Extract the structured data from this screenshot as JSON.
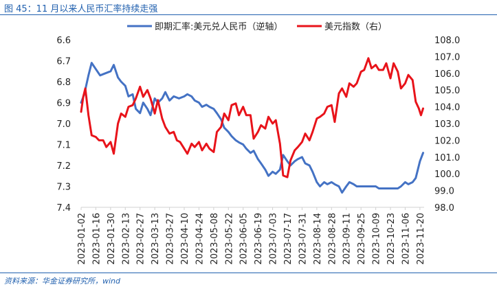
{
  "header": {
    "title": "图 45：11 月以来人民币汇率持续走强"
  },
  "footer": {
    "source": "资料来源：华金证券研究所，wind"
  },
  "chart_data": {
    "type": "line",
    "title": "",
    "x_dates": [
      "2023-01-02",
      "2023-01-16",
      "2023-01-30",
      "2023-02-13",
      "2023-02-27",
      "2023-03-13",
      "2023-03-27",
      "2023-04-10",
      "2023-04-24",
      "2023-05-08",
      "2023-05-22",
      "2023-06-05",
      "2023-06-19",
      "2023-07-03",
      "2023-07-17",
      "2023-07-31",
      "2023-08-14",
      "2023-08-28",
      "2023-09-11",
      "2023-09-25",
      "2023-10-09",
      "2023-10-23",
      "2023-11-06",
      "2023-11-20"
    ],
    "x_range": [
      "2023-01-02",
      "2023-11-24"
    ],
    "y_left": {
      "ticks": [
        "6.6",
        "6.7",
        "6.8",
        "6.9",
        "7.0",
        "7.1",
        "7.2",
        "7.3",
        "7.4"
      ],
      "range": [
        6.6,
        7.4
      ],
      "inverted": true
    },
    "y_right": {
      "ticks": [
        "108.0",
        "107.0",
        "106.0",
        "105.0",
        "104.0",
        "103.0",
        "102.0",
        "101.0",
        "100.0",
        "99.0",
        "98.0"
      ],
      "range": [
        98,
        108
      ]
    },
    "legend_position": "top",
    "series": [
      {
        "name": "即期汇率:美元兑人民币（逆轴）",
        "axis": "left",
        "color": "#4472c4",
        "points": [
          [
            "2023-01-02",
            6.9
          ],
          [
            "2023-01-05",
            6.86
          ],
          [
            "2023-01-09",
            6.77
          ],
          [
            "2023-01-12",
            6.71
          ],
          [
            "2023-01-16",
            6.74
          ],
          [
            "2023-01-20",
            6.77
          ],
          [
            "2023-01-25",
            6.76
          ],
          [
            "2023-01-30",
            6.75
          ],
          [
            "2023-02-02",
            6.72
          ],
          [
            "2023-02-06",
            6.78
          ],
          [
            "2023-02-09",
            6.8
          ],
          [
            "2023-02-13",
            6.82
          ],
          [
            "2023-02-16",
            6.87
          ],
          [
            "2023-02-20",
            6.86
          ],
          [
            "2023-02-23",
            6.93
          ],
          [
            "2023-02-27",
            6.95
          ],
          [
            "2023-03-02",
            6.9
          ],
          [
            "2023-03-06",
            6.93
          ],
          [
            "2023-03-09",
            6.96
          ],
          [
            "2023-03-13",
            6.88
          ],
          [
            "2023-03-16",
            6.9
          ],
          [
            "2023-03-20",
            6.88
          ],
          [
            "2023-03-23",
            6.85
          ],
          [
            "2023-03-27",
            6.89
          ],
          [
            "2023-03-31",
            6.87
          ],
          [
            "2023-04-05",
            6.88
          ],
          [
            "2023-04-10",
            6.87
          ],
          [
            "2023-04-13",
            6.86
          ],
          [
            "2023-04-17",
            6.87
          ],
          [
            "2023-04-20",
            6.89
          ],
          [
            "2023-04-24",
            6.9
          ],
          [
            "2023-04-27",
            6.92
          ],
          [
            "2023-05-01",
            6.91
          ],
          [
            "2023-05-04",
            6.92
          ],
          [
            "2023-05-08",
            6.93
          ],
          [
            "2023-05-11",
            6.95
          ],
          [
            "2023-05-15",
            6.98
          ],
          [
            "2023-05-18",
            7.02
          ],
          [
            "2023-05-22",
            7.04
          ],
          [
            "2023-05-25",
            7.06
          ],
          [
            "2023-05-29",
            7.08
          ],
          [
            "2023-06-01",
            7.09
          ],
          [
            "2023-06-05",
            7.1
          ],
          [
            "2023-06-08",
            7.12
          ],
          [
            "2023-06-12",
            7.14
          ],
          [
            "2023-06-15",
            7.13
          ],
          [
            "2023-06-19",
            7.17
          ],
          [
            "2023-06-22",
            7.19
          ],
          [
            "2023-06-26",
            7.22
          ],
          [
            "2023-06-29",
            7.25
          ],
          [
            "2023-07-03",
            7.23
          ],
          [
            "2023-07-06",
            7.24
          ],
          [
            "2023-07-10",
            7.22
          ],
          [
            "2023-07-13",
            7.15
          ],
          [
            "2023-07-17",
            7.18
          ],
          [
            "2023-07-20",
            7.2
          ],
          [
            "2023-07-24",
            7.18
          ],
          [
            "2023-07-27",
            7.17
          ],
          [
            "2023-07-31",
            7.16
          ],
          [
            "2023-08-03",
            7.19
          ],
          [
            "2023-08-07",
            7.2
          ],
          [
            "2023-08-10",
            7.23
          ],
          [
            "2023-08-14",
            7.28
          ],
          [
            "2023-08-17",
            7.3
          ],
          [
            "2023-08-21",
            7.28
          ],
          [
            "2023-08-24",
            7.29
          ],
          [
            "2023-08-28",
            7.28
          ],
          [
            "2023-08-31",
            7.29
          ],
          [
            "2023-09-04",
            7.3
          ],
          [
            "2023-09-07",
            7.33
          ],
          [
            "2023-09-11",
            7.3
          ],
          [
            "2023-09-14",
            7.28
          ],
          [
            "2023-09-18",
            7.29
          ],
          [
            "2023-09-21",
            7.3
          ],
          [
            "2023-09-25",
            7.3
          ],
          [
            "2023-09-28",
            7.3
          ],
          [
            "2023-10-02",
            7.3
          ],
          [
            "2023-10-09",
            7.3
          ],
          [
            "2023-10-12",
            7.31
          ],
          [
            "2023-10-16",
            7.31
          ],
          [
            "2023-10-19",
            7.31
          ],
          [
            "2023-10-23",
            7.31
          ],
          [
            "2023-10-26",
            7.31
          ],
          [
            "2023-10-30",
            7.31
          ],
          [
            "2023-11-02",
            7.3
          ],
          [
            "2023-11-06",
            7.28
          ],
          [
            "2023-11-09",
            7.29
          ],
          [
            "2023-11-13",
            7.28
          ],
          [
            "2023-11-16",
            7.26
          ],
          [
            "2023-11-20",
            7.18
          ],
          [
            "2023-11-23",
            7.14
          ]
        ]
      },
      {
        "name": "美元指数（右）",
        "axis": "right",
        "color": "#e8131a",
        "points": [
          [
            "2023-01-02",
            103.7
          ],
          [
            "2023-01-04",
            104.6
          ],
          [
            "2023-01-06",
            105.1
          ],
          [
            "2023-01-09",
            103.5
          ],
          [
            "2023-01-12",
            102.3
          ],
          [
            "2023-01-16",
            102.2
          ],
          [
            "2023-01-19",
            102.0
          ],
          [
            "2023-01-23",
            102.0
          ],
          [
            "2023-01-26",
            101.6
          ],
          [
            "2023-01-30",
            101.9
          ],
          [
            "2023-02-02",
            101.2
          ],
          [
            "2023-02-06",
            103.0
          ],
          [
            "2023-02-09",
            103.6
          ],
          [
            "2023-02-13",
            103.4
          ],
          [
            "2023-02-16",
            104.0
          ],
          [
            "2023-02-20",
            104.1
          ],
          [
            "2023-02-23",
            104.5
          ],
          [
            "2023-02-27",
            105.2
          ],
          [
            "2023-03-02",
            104.6
          ],
          [
            "2023-03-06",
            105.0
          ],
          [
            "2023-03-09",
            104.5
          ],
          [
            "2023-03-13",
            103.6
          ],
          [
            "2023-03-16",
            104.4
          ],
          [
            "2023-03-20",
            103.3
          ],
          [
            "2023-03-23",
            102.8
          ],
          [
            "2023-03-27",
            102.4
          ],
          [
            "2023-03-31",
            102.5
          ],
          [
            "2023-04-03",
            102.0
          ],
          [
            "2023-04-06",
            101.9
          ],
          [
            "2023-04-10",
            101.5
          ],
          [
            "2023-04-13",
            101.2
          ],
          [
            "2023-04-17",
            101.8
          ],
          [
            "2023-04-20",
            101.6
          ],
          [
            "2023-04-24",
            101.9
          ],
          [
            "2023-04-27",
            101.4
          ],
          [
            "2023-05-01",
            101.8
          ],
          [
            "2023-05-04",
            101.5
          ],
          [
            "2023-05-08",
            101.3
          ],
          [
            "2023-05-11",
            102.5
          ],
          [
            "2023-05-15",
            102.8
          ],
          [
            "2023-05-18",
            103.6
          ],
          [
            "2023-05-22",
            103.2
          ],
          [
            "2023-05-25",
            104.1
          ],
          [
            "2023-05-29",
            104.2
          ],
          [
            "2023-06-01",
            103.5
          ],
          [
            "2023-06-05",
            104.0
          ],
          [
            "2023-06-08",
            103.5
          ],
          [
            "2023-06-12",
            103.5
          ],
          [
            "2023-06-15",
            102.1
          ],
          [
            "2023-06-19",
            102.5
          ],
          [
            "2023-06-22",
            102.9
          ],
          [
            "2023-06-26",
            102.7
          ],
          [
            "2023-06-29",
            103.4
          ],
          [
            "2023-07-03",
            103.0
          ],
          [
            "2023-07-06",
            103.2
          ],
          [
            "2023-07-10",
            101.8
          ],
          [
            "2023-07-13",
            99.9
          ],
          [
            "2023-07-17",
            99.8
          ],
          [
            "2023-07-20",
            100.8
          ],
          [
            "2023-07-24",
            101.4
          ],
          [
            "2023-07-27",
            101.6
          ],
          [
            "2023-07-31",
            101.9
          ],
          [
            "2023-08-03",
            102.4
          ],
          [
            "2023-08-07",
            102.0
          ],
          [
            "2023-08-10",
            102.5
          ],
          [
            "2023-08-14",
            103.3
          ],
          [
            "2023-08-17",
            103.4
          ],
          [
            "2023-08-21",
            103.6
          ],
          [
            "2023-08-24",
            104.0
          ],
          [
            "2023-08-28",
            104.1
          ],
          [
            "2023-08-31",
            103.1
          ],
          [
            "2023-09-04",
            104.8
          ],
          [
            "2023-09-07",
            105.1
          ],
          [
            "2023-09-11",
            104.6
          ],
          [
            "2023-09-14",
            105.4
          ],
          [
            "2023-09-18",
            105.2
          ],
          [
            "2023-09-21",
            105.4
          ],
          [
            "2023-09-25",
            106.1
          ],
          [
            "2023-09-28",
            106.2
          ],
          [
            "2023-10-02",
            106.9
          ],
          [
            "2023-10-05",
            106.3
          ],
          [
            "2023-10-09",
            106.5
          ],
          [
            "2023-10-12",
            106.2
          ],
          [
            "2023-10-16",
            106.2
          ],
          [
            "2023-10-19",
            106.6
          ],
          [
            "2023-10-23",
            105.7
          ],
          [
            "2023-10-26",
            106.6
          ],
          [
            "2023-10-30",
            106.1
          ],
          [
            "2023-11-02",
            105.1
          ],
          [
            "2023-11-06",
            105.4
          ],
          [
            "2023-11-09",
            105.9
          ],
          [
            "2023-11-13",
            105.6
          ],
          [
            "2023-11-16",
            104.3
          ],
          [
            "2023-11-19",
            103.9
          ],
          [
            "2023-11-21",
            103.5
          ],
          [
            "2023-11-23",
            103.9
          ]
        ]
      }
    ]
  }
}
